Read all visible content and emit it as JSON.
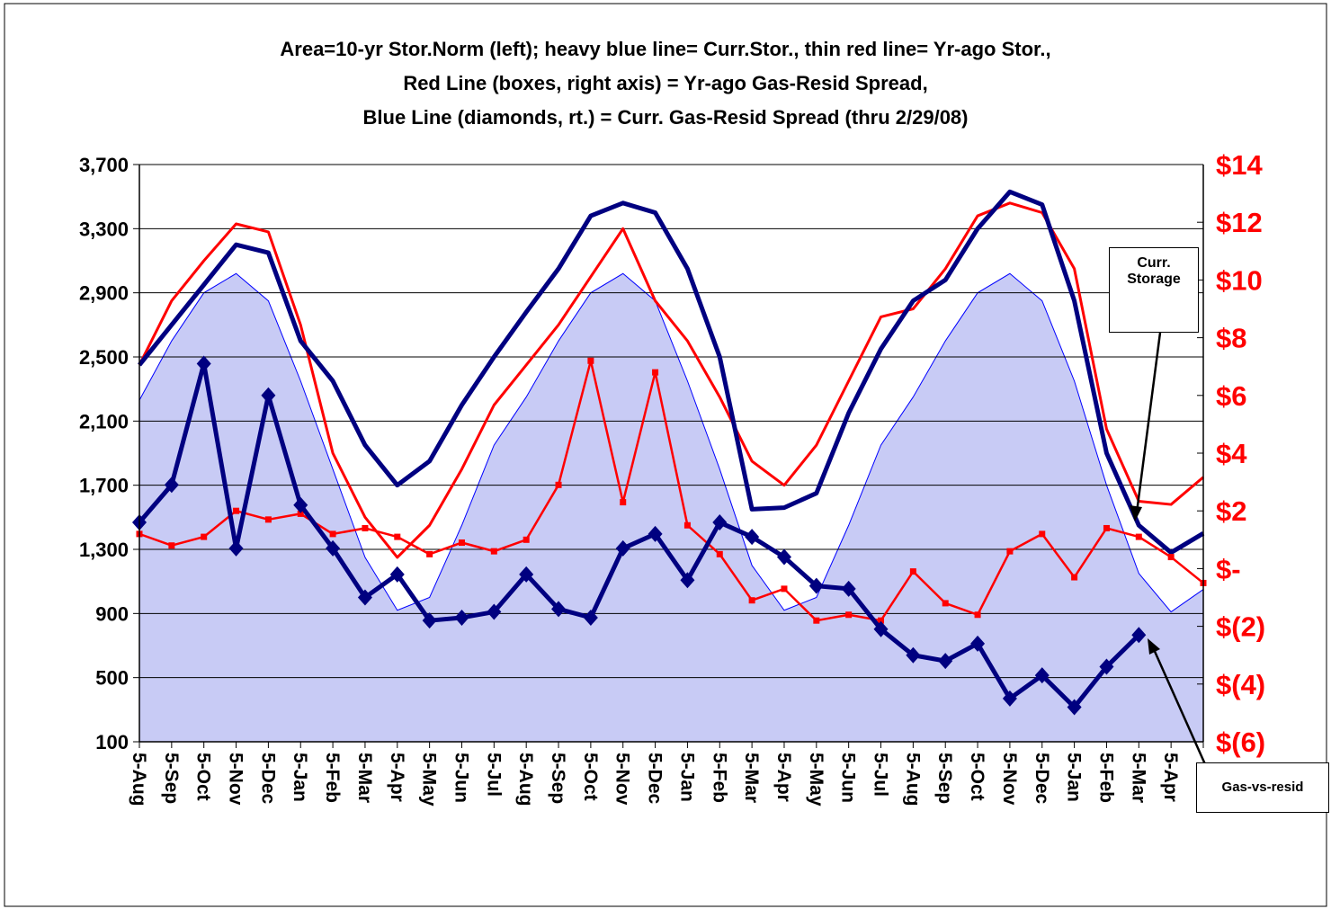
{
  "chart_data": {
    "type": "line",
    "title": [
      "Area=10-yr Stor.Norm (left); heavy blue line= Curr.Stor., thin red line= Yr-ago Stor.,",
      "Red Line (boxes, right axis) = Yr-ago Gas-Resid Spread,",
      "Blue Line (diamonds, rt.) = Curr. Gas-Resid Spread (thru 2/29/08)"
    ],
    "categories": [
      "5-Aug",
      "5-Sep",
      "5-Oct",
      "5-Nov",
      "5-Dec",
      "5-Jan",
      "5-Feb",
      "5-Mar",
      "5-Apr",
      "5-May",
      "5-Jun",
      "5-Jul",
      "5-Aug",
      "5-Sep",
      "5-Oct",
      "5-Nov",
      "5-Dec",
      "5-Jan",
      "5-Feb",
      "5-Mar",
      "5-Apr",
      "5-May",
      "5-Jun",
      "5-Jul",
      "5-Aug",
      "5-Sep",
      "5-Oct",
      "5-Nov",
      "5-Dec",
      "5-Jan",
      "5-Feb",
      "5-Mar",
      "5-Apr",
      null
    ],
    "ylim": [
      100,
      3700
    ],
    "yticks": [
      100,
      500,
      900,
      {
        "value": 1300,
        "label": "1,300"
      },
      {
        "value": 1700,
        "label": "1,700"
      },
      {
        "value": 2100,
        "label": "2,100"
      },
      {
        "value": 2500,
        "label": "2,500"
      },
      {
        "value": 2900,
        "label": "2,900"
      },
      {
        "value": 3300,
        "label": "3,300"
      },
      {
        "value": 3700,
        "label": "3,700"
      }
    ],
    "y2lim": [
      -6,
      14
    ],
    "y2ticks": [
      {
        "value": -6,
        "label": "$(6)"
      },
      {
        "value": -4,
        "label": "$(4)"
      },
      {
        "value": -2,
        "label": "$(2)"
      },
      {
        "value": 0,
        "label": "$-"
      },
      {
        "value": 2,
        "label": "$2"
      },
      {
        "value": 4,
        "label": "$4"
      },
      {
        "value": 6,
        "label": "$6"
      },
      {
        "value": 8,
        "label": "$8"
      },
      {
        "value": 10,
        "label": "$10"
      },
      {
        "value": 12,
        "label": "$12"
      },
      {
        "value": 14,
        "label": "$14"
      }
    ],
    "y2color": "#ff0000",
    "grid": true,
    "series": [
      {
        "kind": "area",
        "color": "#0000ff",
        "fill": "#c8cbf5",
        "width": 1,
        "marker": "none",
        "values": [
          2230,
          2600,
          2900,
          3020,
          2850,
          2350,
          1800,
          1250,
          920,
          1000,
          1450,
          1950,
          2250,
          2600,
          2900,
          3020,
          2850,
          2350,
          1800,
          1200,
          920,
          1000,
          1450,
          1950,
          2250,
          2600,
          2900,
          3020,
          2850,
          2350,
          1700,
          1150,
          910,
          1050
        ]
      },
      {
        "kind": "line",
        "color": "#ff0000",
        "width": 3,
        "marker": "none",
        "values": [
          2450,
          2850,
          3100,
          3330,
          3280,
          2700,
          1900,
          1500,
          1250,
          1450,
          1800,
          2200,
          2450,
          2700,
          3000,
          3300,
          2850,
          2600,
          2250,
          1850,
          1700,
          1950,
          2350,
          2750,
          2800,
          3050,
          3380,
          3460,
          3400,
          3050,
          2050,
          1600,
          1580,
          1750
        ]
      },
      {
        "kind": "line",
        "color": "#000080",
        "width": 5,
        "marker": "none",
        "values": [
          2450,
          2700,
          2950,
          3200,
          3150,
          2600,
          2350,
          1950,
          1700,
          1850,
          2200,
          2500,
          2780,
          3050,
          3380,
          3460,
          3400,
          3050,
          2500,
          1550,
          1560,
          1650,
          2150,
          2550,
          2850,
          2980,
          3300,
          3530,
          3450,
          2850,
          1900,
          1450,
          1280,
          1400
        ]
      },
      {
        "kind": "line",
        "axis": "y2",
        "color": "#ff0000",
        "width": 2.5,
        "marker": "square",
        "values": [
          1.2,
          0.8,
          1.1,
          2.0,
          1.7,
          1.9,
          1.2,
          1.4,
          1.1,
          0.5,
          0.9,
          0.6,
          1.0,
          2.9,
          7.2,
          2.3,
          6.8,
          1.5,
          0.5,
          -1.1,
          -0.7,
          -1.8,
          -1.6,
          -1.8,
          -0.1,
          -1.2,
          -1.6,
          0.6,
          1.2,
          -0.3,
          1.4,
          1.1,
          0.4,
          -0.5
        ]
      },
      {
        "kind": "line",
        "axis": "y2",
        "color": "#000080",
        "width": 5,
        "marker": "diamond",
        "values": [
          1.6,
          2.9,
          7.1,
          0.7,
          6.0,
          2.2,
          0.7,
          -1.0,
          -0.2,
          -1.8,
          -1.7,
          -1.5,
          -0.2,
          -1.4,
          -1.7,
          0.7,
          1.2,
          -0.4,
          1.6,
          1.1,
          0.4,
          -0.6,
          -0.7,
          -2.1,
          -3.0,
          -3.2,
          -2.6,
          -4.5,
          -3.7,
          -4.8,
          -3.4,
          -2.3,
          null,
          null
        ]
      }
    ],
    "annotations": [
      {
        "text": "Curr. Storage"
      },
      {
        "text": "Gas-vs-resid"
      }
    ]
  }
}
